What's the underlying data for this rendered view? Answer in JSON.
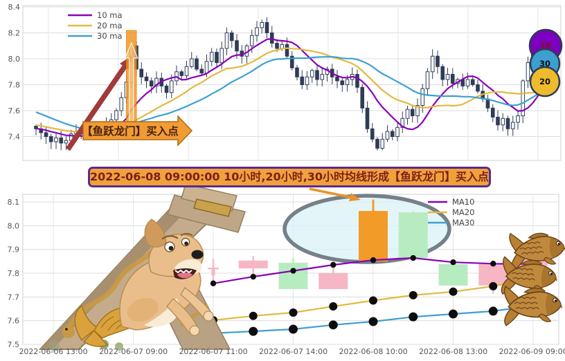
{
  "mid_banner": {
    "text": "2022-06-08 09:00:00 10小时,20小时,30小时均线形成【鱼跃龙门】买入点"
  },
  "chart_data": [
    {
      "type": "candlestick",
      "panel": "top",
      "legend": [
        {
          "label": "10 ma",
          "color": "#8a00b8"
        },
        {
          "label": "20 ma",
          "color": "#e3b93f"
        },
        {
          "label": "30 ma",
          "color": "#3d9fd0"
        }
      ],
      "yticks": [
        8.4,
        8.2,
        8.0,
        7.8,
        7.6,
        7.4
      ],
      "ylim": [
        7.22,
        8.41
      ],
      "grid": true,
      "closes": [
        7.46,
        7.43,
        7.4,
        7.36,
        7.39,
        7.35,
        7.37,
        7.42,
        7.44,
        7.42,
        7.45,
        7.43,
        7.47,
        7.5,
        7.47,
        7.53,
        7.6,
        7.7,
        7.82,
        8.1,
        7.92,
        7.86,
        7.83,
        7.79,
        7.85,
        7.79,
        7.74,
        7.83,
        7.9,
        7.87,
        7.94,
        8.0,
        7.92,
        7.89,
        7.98,
        8.05,
        7.97,
        8.08,
        8.2,
        8.14,
        8.06,
        8.02,
        8.1,
        8.18,
        8.24,
        8.28,
        8.2,
        8.12,
        8.08,
        8.11,
        8.02,
        7.93,
        7.86,
        7.8,
        7.86,
        7.91,
        7.84,
        7.88,
        7.92,
        7.86,
        7.83,
        7.8,
        7.84,
        7.88,
        7.78,
        7.62,
        7.46,
        7.38,
        7.31,
        7.38,
        7.44,
        7.4,
        7.47,
        7.54,
        7.61,
        7.56,
        7.64,
        7.77,
        7.9,
        8.02,
        7.94,
        7.84,
        7.88,
        7.81,
        7.84,
        7.79,
        7.84,
        7.8,
        7.75,
        7.69,
        7.62,
        7.55,
        7.49,
        7.54,
        7.46,
        7.51,
        7.56,
        7.83,
        7.97,
        8.08,
        8.15,
        7.99
      ],
      "ma_windows": [
        10,
        20,
        30
      ],
      "ma_seed": [
        7.88,
        7.87,
        7.86,
        7.84,
        7.83,
        7.81,
        7.8,
        7.79,
        7.77,
        7.76,
        7.56,
        7.55,
        7.54,
        7.53,
        7.52,
        7.51,
        7.51,
        7.5,
        7.5,
        7.49,
        7.49,
        7.48,
        7.48,
        7.47,
        7.47,
        7.46,
        7.46,
        7.45,
        7.45,
        7.44
      ],
      "highlight_index": 19,
      "annotations": {
        "buy_flag": "【鱼跃龙门】买入点",
        "badges": [
          {
            "label": "10",
            "bg": "#7d00c0",
            "fg": "#7a1515"
          },
          {
            "label": "30",
            "bg": "#3d9fd0",
            "fg": "#121212"
          },
          {
            "label": "20",
            "bg": "#eebb2e",
            "fg": "#121212"
          }
        ]
      }
    },
    {
      "type": "candlestick",
      "panel": "bottom",
      "x_labels": [
        "2022-06-06 13:00",
        "2022-06-07 09:00",
        "2022-06-07 11:00",
        "2022-06-07 14:00",
        "2022-06-08 10:00",
        "2022-06-08 13:00",
        "2022-06-09 09:00"
      ],
      "yticks": [
        8.1,
        8.0,
        7.9,
        7.8,
        7.7,
        7.6,
        7.5
      ],
      "ylim": [
        7.44,
        8.13
      ],
      "grid": true,
      "slot_count": 13,
      "candles": [
        {
          "slot": 4,
          "o": 7.82,
          "h": 7.86,
          "l": 7.755,
          "c": 7.79,
          "dir": "down",
          "narrow": true
        },
        {
          "slot": 5,
          "o": 7.853,
          "h": 7.872,
          "l": 7.78,
          "c": 7.82,
          "dir": "down"
        },
        {
          "slot": 6,
          "o": 7.733,
          "h": 7.865,
          "l": 7.733,
          "c": 7.844,
          "dir": "up"
        },
        {
          "slot": 7,
          "o": 7.8,
          "h": 7.849,
          "l": 7.733,
          "c": 7.733,
          "dir": "down"
        },
        {
          "slot": 8,
          "o": 7.849,
          "h": 8.11,
          "l": 7.849,
          "c": 8.062,
          "dir": "up",
          "highlight": true
        },
        {
          "slot": 9,
          "o": 7.864,
          "h": 8.06,
          "l": 7.864,
          "c": 8.056,
          "dir": "up"
        },
        {
          "slot": 10,
          "o": 7.748,
          "h": 7.838,
          "l": 7.748,
          "c": 7.838,
          "dir": "up"
        },
        {
          "slot": 11,
          "o": 7.838,
          "h": 7.838,
          "l": 7.713,
          "c": 7.748,
          "dir": "down"
        },
        {
          "slot": 12,
          "o": 7.91,
          "h": 7.91,
          "l": 7.82,
          "c": 7.83,
          "dir": "down"
        }
      ],
      "series": [
        {
          "name": "MA10",
          "color": "#8a00b8",
          "start_slot": 4,
          "values": [
            7.757,
            7.785,
            7.81,
            7.835,
            7.855,
            7.864,
            7.846,
            7.84,
            7.838
          ]
        },
        {
          "name": "MA20",
          "color": "#e3b93f",
          "start_slot": 4,
          "values": [
            7.602,
            7.62,
            7.634,
            7.66,
            7.685,
            7.707,
            7.722,
            7.745,
            7.778
          ]
        },
        {
          "name": "MA30",
          "color": "#3d9fd0",
          "start_slot": 4,
          "values": [
            7.547,
            7.555,
            7.564,
            7.582,
            7.596,
            7.616,
            7.628,
            7.64,
            7.663
          ]
        }
      ],
      "highlight_slot": 8
    }
  ],
  "colors": {
    "candle_dark": "#2f3c57",
    "candle_up_bottom": "#b7ecc0",
    "candle_down_bottom": "#f7b6c3",
    "candle_highlight": "#f39b28",
    "trend_arrow": "#a03b3b",
    "orange_accent": "#f09c35",
    "ellipse_stroke": "#758089"
  }
}
